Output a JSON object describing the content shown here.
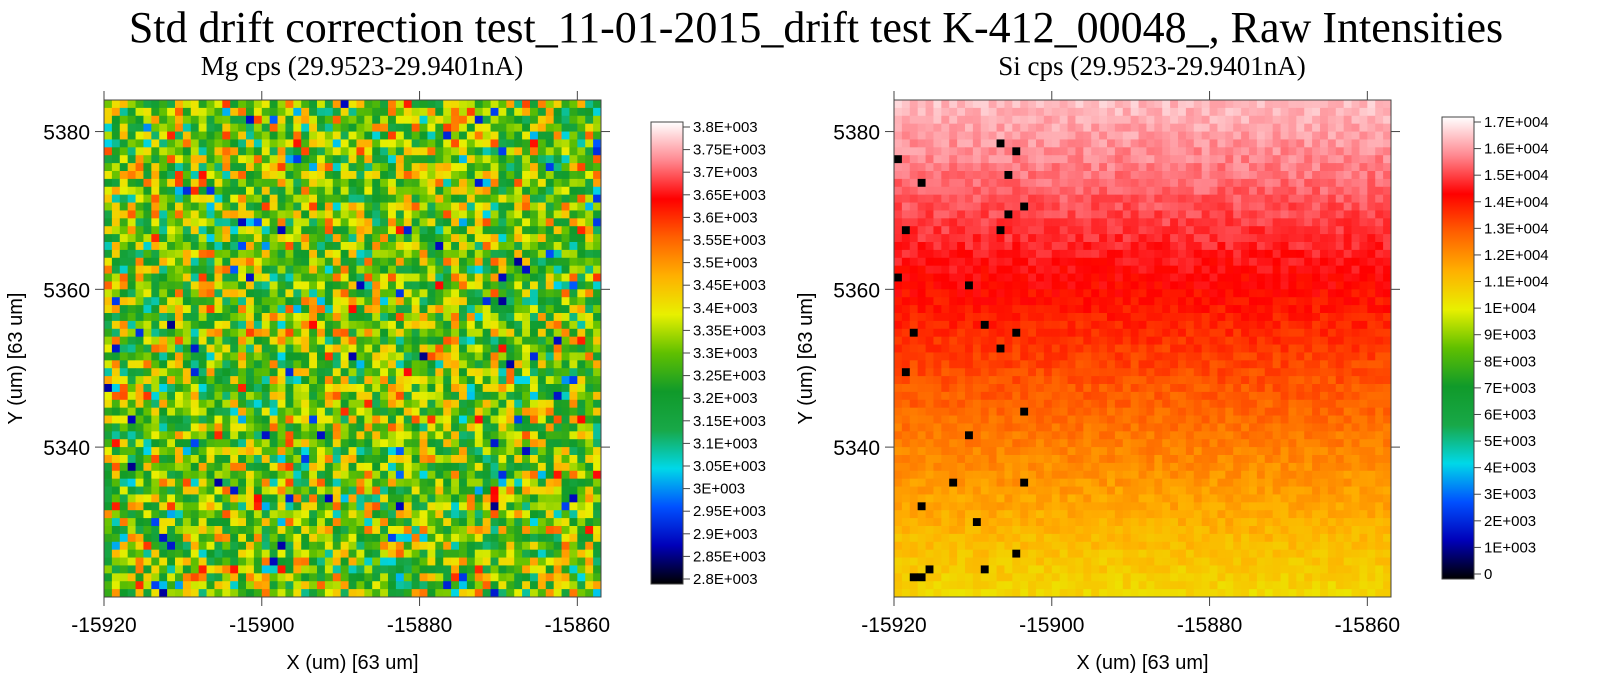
{
  "title": "Std drift correction test_11-01-2015_drift test K-412_00048_, Raw Intensities",
  "chart_data": [
    {
      "type": "heatmap",
      "title": "Mg cps (29.9523-29.9401nA)",
      "xlabel": "X (um)   [63 um]",
      "ylabel": "Y (um)   [63 um]",
      "xlim": [
        -15920,
        -15857
      ],
      "ylim": [
        5321,
        5384
      ],
      "x_ticks": [
        "-15920",
        "-15900",
        "-15880",
        "-15860"
      ],
      "y_ticks": [
        "5380",
        "5360",
        "5340"
      ],
      "grid_size": 63,
      "pattern": "uniform random noise, no spatial gradient",
      "value_range": [
        2800,
        3800
      ],
      "value_typical": 3300,
      "colorbar": {
        "labels": [
          "3.8E+003",
          "3.75E+003",
          "3.7E+003",
          "3.65E+003",
          "3.6E+003",
          "3.55E+003",
          "3.5E+003",
          "3.45E+003",
          "3.4E+003",
          "3.35E+003",
          "3.3E+003",
          "3.25E+003",
          "3.2E+003",
          "3.15E+003",
          "3.1E+003",
          "3.05E+003",
          "3E+003",
          "2.95E+003",
          "2.9E+003",
          "2.85E+003",
          "2.8E+003"
        ],
        "min": 2800,
        "max": 3800
      }
    },
    {
      "type": "heatmap",
      "title": "Si cps (29.9523-29.9401nA)",
      "xlabel": "X (um)   [63 um]",
      "ylabel": "Y (um)   [63 um]",
      "xlim": [
        -15920,
        -15857
      ],
      "ylim": [
        5321,
        5384
      ],
      "x_ticks": [
        "-15920",
        "-15900",
        "-15880",
        "-15860"
      ],
      "y_ticks": [
        "5380",
        "5360",
        "5340"
      ],
      "grid_size": 63,
      "pattern": "vertical gradient: approx 16000 cps at top falling to approx 10500 cps at bottom, with isolated zero-count pixels near left edge",
      "value_range": [
        0,
        17000
      ],
      "top_value": 16200,
      "bottom_value": 10500,
      "colorbar": {
        "labels": [
          "1.7E+004",
          "1.6E+004",
          "1.5E+004",
          "1.4E+004",
          "1.3E+004",
          "1.2E+004",
          "1.1E+004",
          "1E+004",
          "9E+003",
          "8E+003",
          "7E+003",
          "6E+003",
          "5E+003",
          "4E+003",
          "3E+003",
          "2E+003",
          "1E+003",
          "0"
        ],
        "min": 0,
        "max": 17000
      }
    }
  ],
  "colormap": [
    "#000000",
    "#0000b8",
    "#0050ff",
    "#00d8e8",
    "#18a848",
    "#109a2a",
    "#60c000",
    "#e8f000",
    "#ffb000",
    "#ff6000",
    "#ff0000",
    "#ff8890",
    "#ffffff"
  ]
}
